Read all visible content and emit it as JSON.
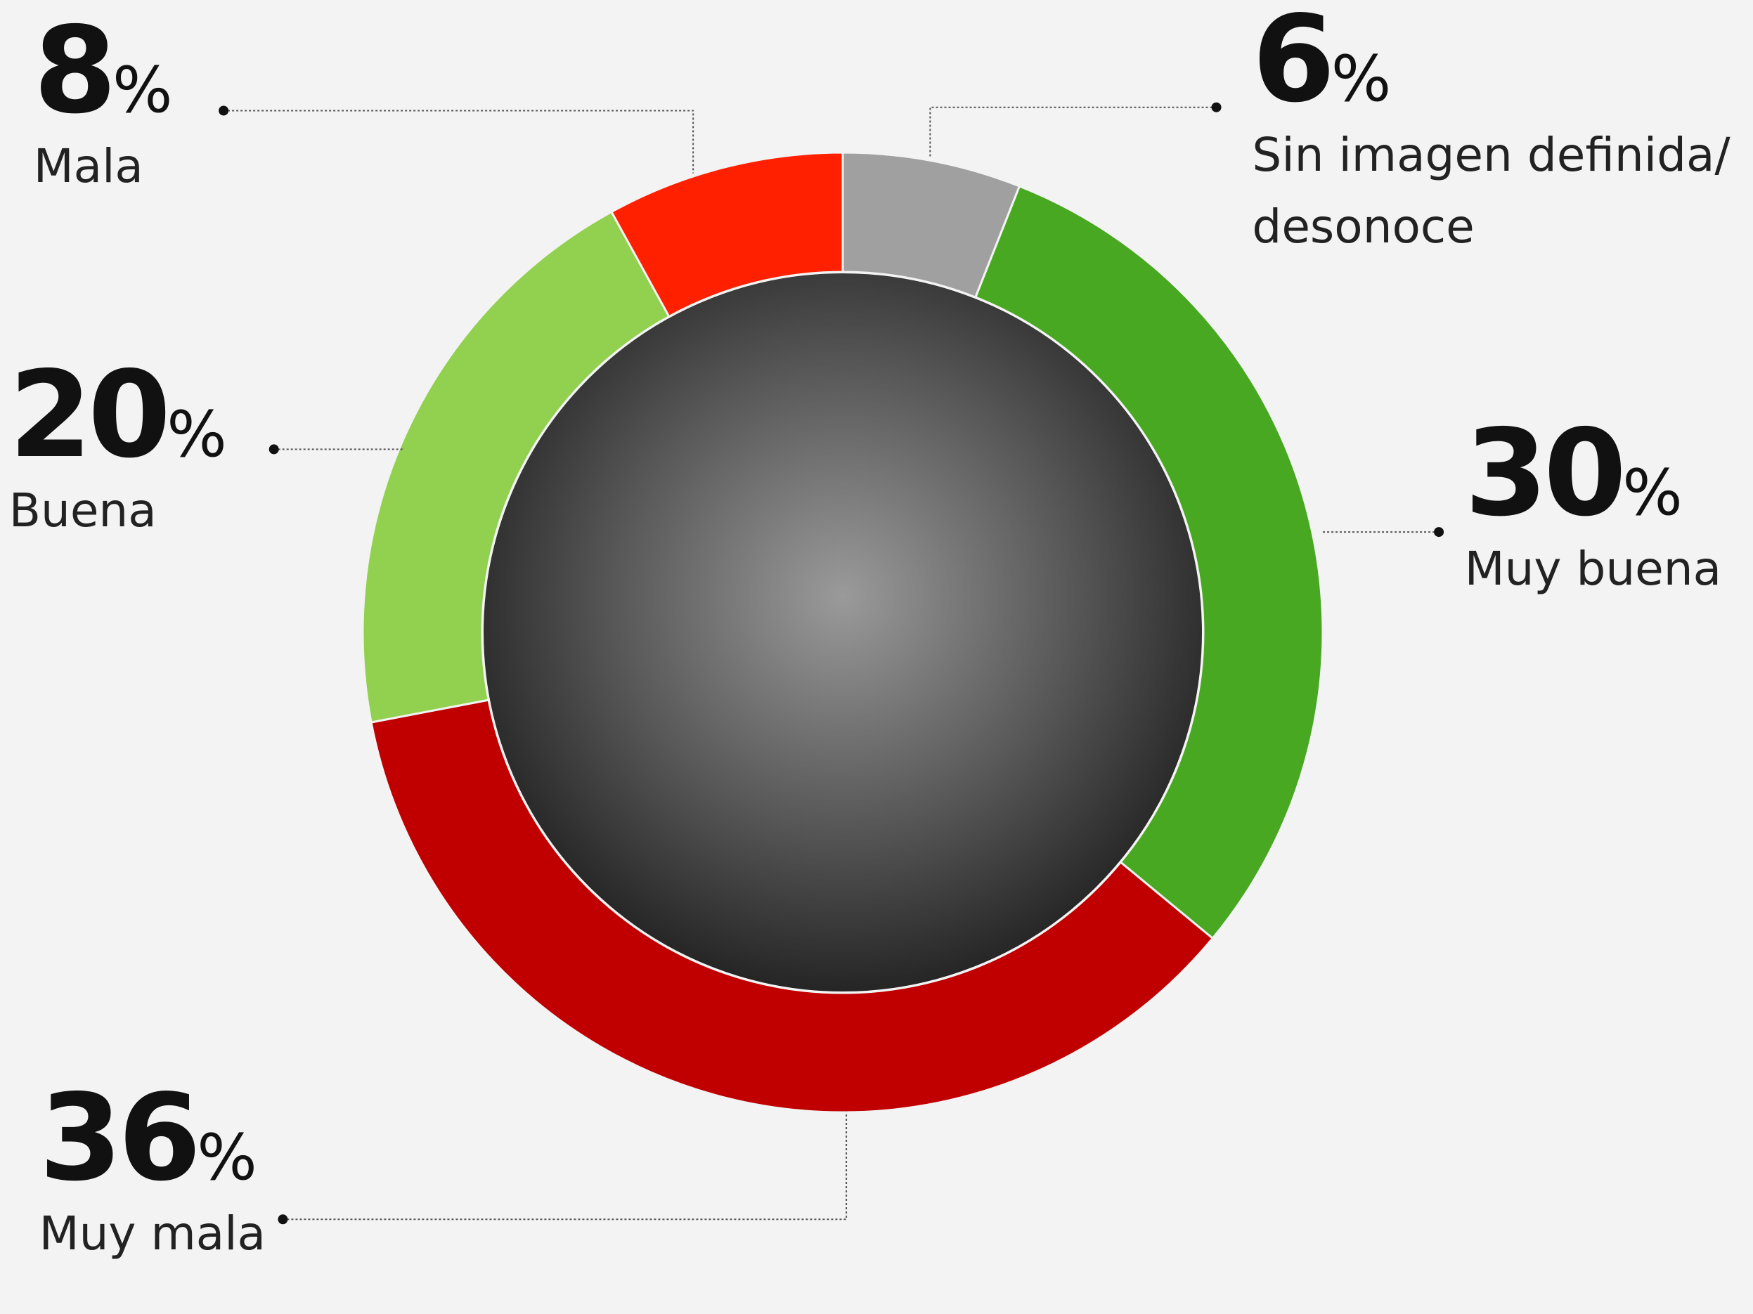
{
  "chart_data": {
    "type": "pie",
    "donut": true,
    "unit": "%",
    "categories": [
      "Sin imagen definida/ desonoce",
      "Muy buena",
      "Muy mala",
      "Buena",
      "Mala"
    ],
    "values": [
      6,
      30,
      36,
      20,
      8
    ],
    "colors": [
      "#a0a0a0",
      "#48a822",
      "#c00000",
      "#92d050",
      "#ff2000"
    ]
  }
}
